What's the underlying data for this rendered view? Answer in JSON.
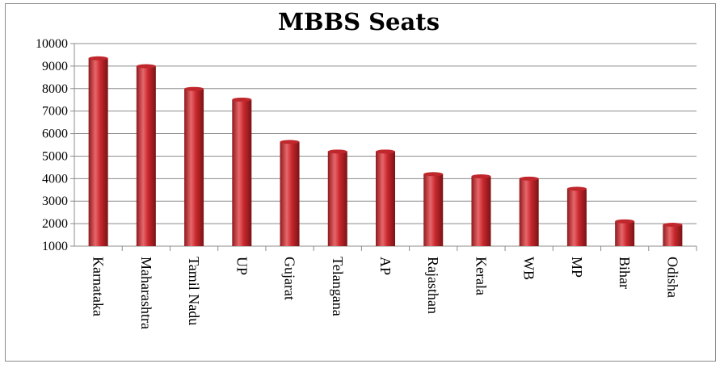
{
  "chart_data": {
    "type": "bar",
    "title": "MBBS Seats",
    "xlabel": "",
    "ylabel": "",
    "categories": [
      "Karnataka",
      "Maharashtra",
      "Tamil Nadu",
      "UP",
      "Gujarat",
      "Telangana",
      "AP",
      "Rajasthan",
      "Kerala",
      "WB",
      "MP",
      "Bihar",
      "Odisha"
    ],
    "values": [
      9345,
      8995,
      7985,
      7510,
      5630,
      5200,
      5200,
      4200,
      4100,
      4000,
      3550,
      2100,
      1950
    ],
    "ylim": [
      1000,
      10000
    ],
    "yticks": [
      "10000",
      "9000",
      "8000",
      "7000",
      "6000",
      "5000",
      "4000",
      "3000",
      "2000",
      "1000"
    ],
    "grid": true,
    "colors": {
      "bar": "#c0272d",
      "bar_highlight": "#e8676b",
      "bar_shadow": "#7a1214",
      "grid": "#8c8c8c"
    }
  }
}
